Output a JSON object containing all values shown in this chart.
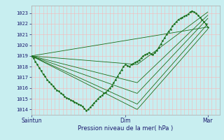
{
  "background_color": "#c8eef0",
  "grid_color": "#f5b8b8",
  "line_color": "#1a6e1a",
  "ylabel_ticks": [
    1014,
    1015,
    1016,
    1017,
    1018,
    1019,
    1020,
    1021,
    1022,
    1023
  ],
  "ylim": [
    1013.5,
    1023.7
  ],
  "xlim": [
    0,
    48
  ],
  "xtick_positions": [
    0,
    24,
    45
  ],
  "xtick_labels": [
    "Saintun",
    "Dim",
    "Mar"
  ],
  "xlabel": "Pression niveau de la mer( hPa )",
  "fan_lines": [
    {
      "x": [
        0,
        27,
        45
      ],
      "y": [
        1019.0,
        1014.0,
        1021.5
      ]
    },
    {
      "x": [
        0,
        27,
        45
      ],
      "y": [
        1019.0,
        1014.5,
        1022.0
      ]
    },
    {
      "x": [
        0,
        27,
        45
      ],
      "y": [
        1019.0,
        1015.5,
        1022.5
      ]
    },
    {
      "x": [
        0,
        27,
        45
      ],
      "y": [
        1019.0,
        1016.5,
        1022.8
      ]
    },
    {
      "x": [
        0,
        27,
        45
      ],
      "y": [
        1019.0,
        1018.2,
        1023.1
      ]
    },
    {
      "x": [
        0,
        45
      ],
      "y": [
        1019.0,
        1021.7
      ]
    }
  ],
  "detailed_x": [
    0,
    0.5,
    1,
    1.5,
    2,
    2.5,
    3,
    3.5,
    4,
    4.5,
    5,
    5.5,
    6,
    6.5,
    7,
    7.5,
    8,
    8.5,
    9,
    9.5,
    10,
    10.5,
    11,
    11.5,
    12,
    12.5,
    13,
    13.5,
    14,
    14.5,
    15,
    15.5,
    16,
    16.5,
    17,
    17.5,
    18,
    18.5,
    19,
    19.5,
    20,
    20.5,
    21,
    21.5,
    22,
    22.5,
    23,
    23.5,
    24,
    24.5,
    25,
    25.5,
    26,
    26.5,
    27,
    27.5,
    28,
    28.5,
    29,
    29.5,
    30,
    30.5,
    31,
    31.5,
    32,
    32.5,
    33,
    33.5,
    34,
    34.5,
    35,
    35.5,
    36,
    36.5,
    37,
    37.5,
    38,
    38.5,
    39,
    39.5,
    40,
    40.5,
    41,
    41.5,
    42,
    42.5,
    43,
    43.5,
    44,
    44.5,
    45
  ],
  "detailed_y": [
    1019.0,
    1018.8,
    1018.5,
    1018.2,
    1017.9,
    1017.6,
    1017.3,
    1017.1,
    1016.8,
    1016.6,
    1016.4,
    1016.2,
    1016.0,
    1015.8,
    1015.7,
    1015.5,
    1015.4,
    1015.2,
    1015.1,
    1015.0,
    1014.9,
    1014.8,
    1014.7,
    1014.6,
    1014.5,
    1014.4,
    1014.3,
    1014.1,
    1013.9,
    1014.0,
    1014.2,
    1014.4,
    1014.6,
    1014.8,
    1015.0,
    1015.2,
    1015.3,
    1015.5,
    1015.6,
    1015.8,
    1016.0,
    1016.2,
    1016.5,
    1016.8,
    1017.1,
    1017.4,
    1017.7,
    1018.0,
    1018.2,
    1018.1,
    1018.0,
    1018.2,
    1018.3,
    1018.4,
    1018.5,
    1018.6,
    1018.8,
    1019.0,
    1019.1,
    1019.2,
    1019.3,
    1019.2,
    1019.1,
    1019.3,
    1019.5,
    1019.8,
    1020.1,
    1020.4,
    1020.7,
    1021.0,
    1021.3,
    1021.5,
    1021.8,
    1022.0,
    1022.2,
    1022.4,
    1022.5,
    1022.6,
    1022.7,
    1022.8,
    1022.9,
    1023.1,
    1023.2,
    1023.1,
    1023.0,
    1022.8,
    1022.6,
    1022.4,
    1022.2,
    1022.0,
    1021.7
  ]
}
